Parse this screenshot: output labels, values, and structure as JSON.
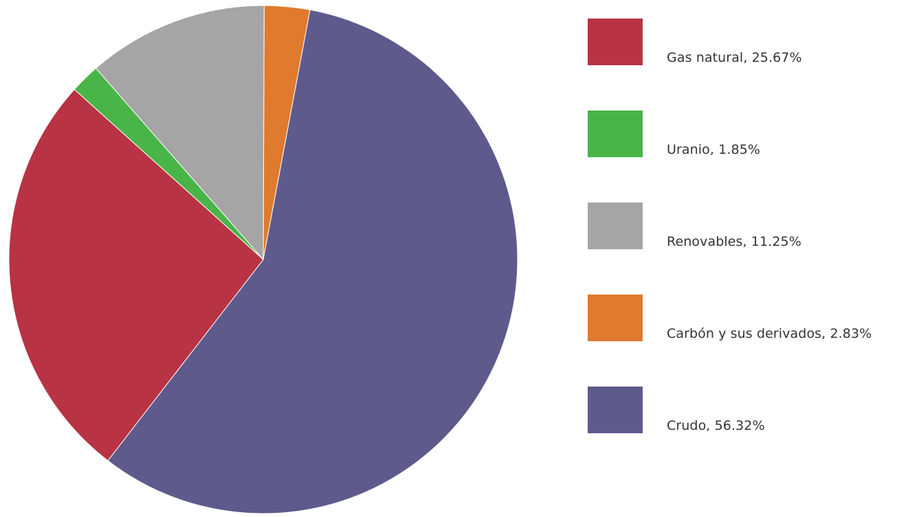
{
  "chart_data": {
    "type": "pie",
    "series": [
      {
        "name": "Carbón y sus derivados",
        "label": "Carbón y sus derivados, 2.83%",
        "value": 2.83,
        "color": "#e07a2e"
      },
      {
        "name": "Crudo",
        "label": "Crudo, 56.32%",
        "value": 56.32,
        "color": "#5e5a8c"
      },
      {
        "name": "Gas natural",
        "label": "Gas natural, 25.67%",
        "value": 25.67,
        "color": "#b83344"
      },
      {
        "name": "Uranio",
        "label": "Uranio, 1.85%",
        "value": 1.85,
        "color": "#49b548"
      },
      {
        "name": "Renovables",
        "label": "Renovables, 11.25%",
        "value": 11.25,
        "color": "#a5a5a5"
      }
    ],
    "legend": {
      "placement": "right",
      "order": [
        {
          "label": "Gas natural, 25.67%",
          "color": "#b83344"
        },
        {
          "label": "Uranio, 1.85%",
          "color": "#49b548"
        },
        {
          "label": "Renovables, 11.25%",
          "color": "#a5a5a5"
        },
        {
          "label": "Carbón y sus derivados, 2.83%",
          "color": "#e07a2e"
        },
        {
          "label": "Crudo, 56.32%",
          "color": "#5e5a8c"
        }
      ]
    }
  }
}
